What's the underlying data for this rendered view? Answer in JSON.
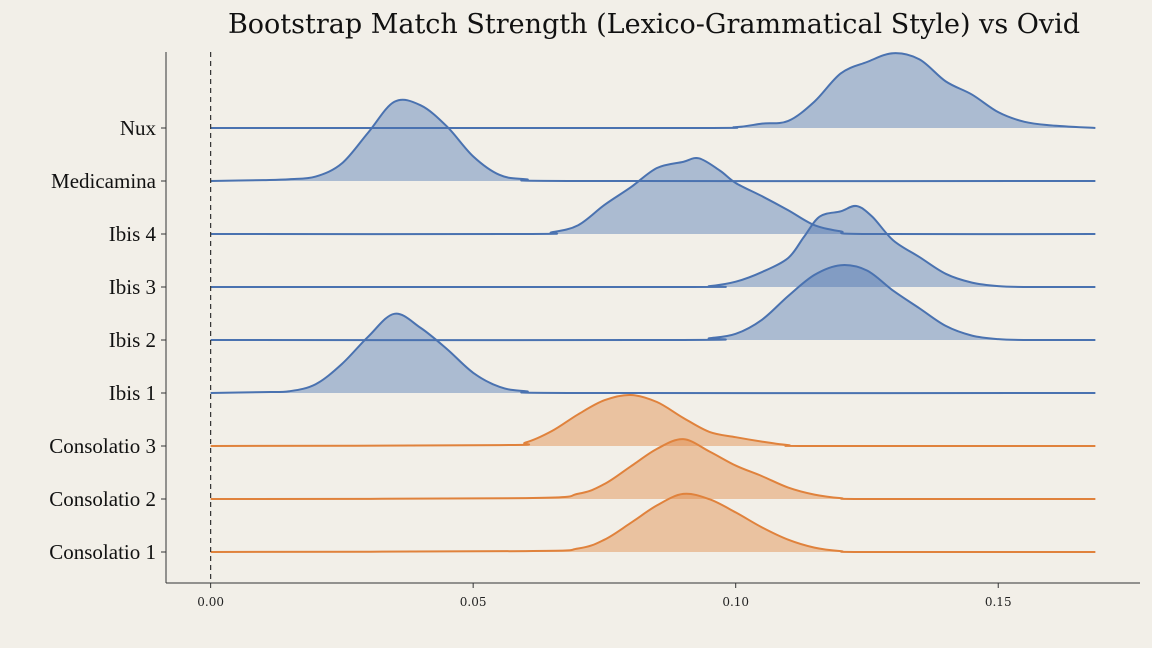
{
  "chart_data": {
    "type": "ridgeline",
    "title": "Bootstrap Match Strength (Lexico-Grammatical Style) vs Ovid",
    "xlabel": "",
    "ylabel": "",
    "xlim": [
      -0.0085,
      0.177
    ],
    "x_ticks": [
      {
        "value": 0.0,
        "label": "0.00"
      },
      {
        "value": 0.05,
        "label": "0.05"
      },
      {
        "value": 0.1,
        "label": "0.10"
      },
      {
        "value": 0.15,
        "label": "0.15"
      }
    ],
    "reference_line": {
      "x": 0.0,
      "style": "dashed"
    },
    "x_range_drawn": [
      0.0,
      0.1685
    ],
    "colors": {
      "blue": "#4a72b0",
      "orange": "#e0823c",
      "background": "#f2efe8",
      "axis": "#333333"
    },
    "ridge_spacing": 1,
    "series": [
      {
        "name": "Nux",
        "color": "#4a72b0",
        "density_points": [
          [
            0.0,
            0
          ],
          [
            0.09,
            0.0
          ],
          [
            0.1,
            0.01
          ],
          [
            0.105,
            0.05
          ],
          [
            0.11,
            0.08
          ],
          [
            0.115,
            0.3
          ],
          [
            0.12,
            0.62
          ],
          [
            0.125,
            0.75
          ],
          [
            0.13,
            0.85
          ],
          [
            0.135,
            0.78
          ],
          [
            0.14,
            0.53
          ],
          [
            0.145,
            0.38
          ],
          [
            0.15,
            0.18
          ],
          [
            0.155,
            0.07
          ],
          [
            0.16,
            0.03
          ],
          [
            0.1685,
            0
          ]
        ]
      },
      {
        "name": "Medicamina",
        "color": "#4a72b0",
        "density_points": [
          [
            0.0,
            0
          ],
          [
            0.01,
            0.01
          ],
          [
            0.015,
            0.02
          ],
          [
            0.02,
            0.05
          ],
          [
            0.025,
            0.2
          ],
          [
            0.03,
            0.55
          ],
          [
            0.035,
            0.9
          ],
          [
            0.04,
            0.86
          ],
          [
            0.045,
            0.62
          ],
          [
            0.05,
            0.28
          ],
          [
            0.055,
            0.07
          ],
          [
            0.06,
            0.02
          ],
          [
            0.07,
            0.0
          ],
          [
            0.1685,
            0
          ]
        ]
      },
      {
        "name": "Ibis 4",
        "color": "#4a72b0",
        "density_points": [
          [
            0.0,
            0
          ],
          [
            0.06,
            0.0
          ],
          [
            0.065,
            0.02
          ],
          [
            0.07,
            0.1
          ],
          [
            0.075,
            0.33
          ],
          [
            0.08,
            0.53
          ],
          [
            0.085,
            0.75
          ],
          [
            0.09,
            0.82
          ],
          [
            0.093,
            0.86
          ],
          [
            0.097,
            0.72
          ],
          [
            0.1,
            0.58
          ],
          [
            0.105,
            0.43
          ],
          [
            0.11,
            0.27
          ],
          [
            0.115,
            0.1
          ],
          [
            0.12,
            0.03
          ],
          [
            0.125,
            0.0
          ],
          [
            0.1685,
            0
          ]
        ]
      },
      {
        "name": "Ibis 3",
        "color": "#4a72b0",
        "density_points": [
          [
            0.0,
            0
          ],
          [
            0.09,
            0.0
          ],
          [
            0.095,
            0.01
          ],
          [
            0.1,
            0.06
          ],
          [
            0.105,
            0.17
          ],
          [
            0.11,
            0.33
          ],
          [
            0.113,
            0.57
          ],
          [
            0.116,
            0.8
          ],
          [
            0.12,
            0.86
          ],
          [
            0.123,
            0.92
          ],
          [
            0.126,
            0.8
          ],
          [
            0.13,
            0.53
          ],
          [
            0.135,
            0.34
          ],
          [
            0.14,
            0.15
          ],
          [
            0.145,
            0.05
          ],
          [
            0.15,
            0.01
          ],
          [
            0.155,
            0.0
          ],
          [
            0.1685,
            0
          ]
        ]
      },
      {
        "name": "Ibis 2",
        "color": "#4a72b0",
        "density_points": [
          [
            0.0,
            0
          ],
          [
            0.09,
            0.0
          ],
          [
            0.095,
            0.02
          ],
          [
            0.1,
            0.07
          ],
          [
            0.105,
            0.23
          ],
          [
            0.11,
            0.5
          ],
          [
            0.115,
            0.74
          ],
          [
            0.12,
            0.85
          ],
          [
            0.125,
            0.79
          ],
          [
            0.13,
            0.56
          ],
          [
            0.135,
            0.36
          ],
          [
            0.14,
            0.16
          ],
          [
            0.145,
            0.05
          ],
          [
            0.15,
            0.01
          ],
          [
            0.155,
            0.0
          ],
          [
            0.1685,
            0
          ]
        ]
      },
      {
        "name": "Ibis 1",
        "color": "#4a72b0",
        "density_points": [
          [
            0.0,
            0
          ],
          [
            0.01,
            0.01
          ],
          [
            0.015,
            0.02
          ],
          [
            0.02,
            0.1
          ],
          [
            0.025,
            0.33
          ],
          [
            0.03,
            0.64
          ],
          [
            0.035,
            0.9
          ],
          [
            0.04,
            0.74
          ],
          [
            0.045,
            0.5
          ],
          [
            0.05,
            0.23
          ],
          [
            0.055,
            0.07
          ],
          [
            0.06,
            0.02
          ],
          [
            0.07,
            0.0
          ],
          [
            0.1685,
            0
          ]
        ]
      },
      {
        "name": "Consolatio 3",
        "color": "#e0823c",
        "density_points": [
          [
            0.0,
            0
          ],
          [
            0.055,
            0.01
          ],
          [
            0.06,
            0.04
          ],
          [
            0.065,
            0.17
          ],
          [
            0.07,
            0.36
          ],
          [
            0.075,
            0.52
          ],
          [
            0.08,
            0.58
          ],
          [
            0.085,
            0.5
          ],
          [
            0.09,
            0.32
          ],
          [
            0.095,
            0.16
          ],
          [
            0.1,
            0.1
          ],
          [
            0.105,
            0.05
          ],
          [
            0.11,
            0.01
          ],
          [
            0.115,
            0.0
          ],
          [
            0.1685,
            0
          ]
        ]
      },
      {
        "name": "Consolatio 2",
        "color": "#e0823c",
        "density_points": [
          [
            0.0,
            0
          ],
          [
            0.06,
            0.01
          ],
          [
            0.07,
            0.06
          ],
          [
            0.075,
            0.17
          ],
          [
            0.08,
            0.37
          ],
          [
            0.085,
            0.57
          ],
          [
            0.09,
            0.68
          ],
          [
            0.095,
            0.54
          ],
          [
            0.1,
            0.38
          ],
          [
            0.105,
            0.26
          ],
          [
            0.11,
            0.13
          ],
          [
            0.115,
            0.05
          ],
          [
            0.12,
            0.01
          ],
          [
            0.125,
            0.0
          ],
          [
            0.1685,
            0
          ]
        ]
      },
      {
        "name": "Consolatio 1",
        "color": "#e0823c",
        "density_points": [
          [
            0.0,
            0
          ],
          [
            0.06,
            0.01
          ],
          [
            0.07,
            0.04
          ],
          [
            0.075,
            0.14
          ],
          [
            0.08,
            0.33
          ],
          [
            0.085,
            0.53
          ],
          [
            0.09,
            0.66
          ],
          [
            0.095,
            0.6
          ],
          [
            0.1,
            0.45
          ],
          [
            0.105,
            0.28
          ],
          [
            0.11,
            0.14
          ],
          [
            0.115,
            0.05
          ],
          [
            0.12,
            0.01
          ],
          [
            0.125,
            0.0
          ],
          [
            0.1685,
            0
          ]
        ]
      }
    ]
  }
}
